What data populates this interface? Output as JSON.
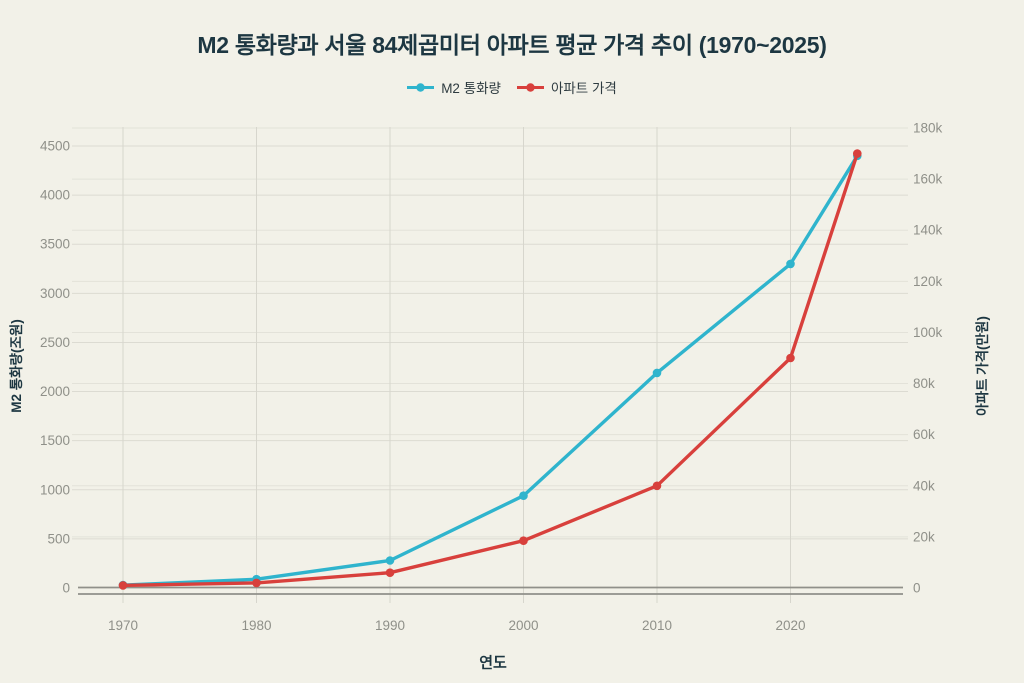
{
  "page": {
    "background": "#f2f1e8"
  },
  "title": "M2 통화량과 서울 84제곱미터 아파트 평균 가격 추이 (1970~2025)",
  "legend": {
    "items": [
      {
        "id": "m2",
        "label": "M2 통화량",
        "color": "#2fb4cd"
      },
      {
        "id": "apt",
        "label": "아파트 가격",
        "color": "#d8403c"
      }
    ]
  },
  "colors": {
    "background": "#f2f1e8",
    "title_text": "#1d3742",
    "tick_text": "#8f9089",
    "grid_light": "#e3e2d9",
    "grid": "#dcdbd2",
    "grid_vertical": "#d7d6cd",
    "axis_line": "#90908a",
    "m2_series": "#2fb4cd",
    "apt_series": "#d8403c"
  },
  "chart_data": {
    "type": "line",
    "title": "M2 통화량과 서울 84제곱미터 아파트 평균 가격 추이 (1970~2025)",
    "xlabel": "연도",
    "y_left_label": "M2 통화량(조원)",
    "y_right_label": "아파트 가격(만원)",
    "x": [
      1970,
      1980,
      1990,
      2000,
      2010,
      2020,
      2025
    ],
    "x_tick_labels": [
      "1970",
      "1980",
      "1990",
      "2000",
      "2010",
      "2020"
    ],
    "x_ticks": [
      1970,
      1980,
      1990,
      2000,
      2010,
      2020
    ],
    "y_left_ticks": [
      0,
      500,
      1000,
      1500,
      2000,
      2500,
      3000,
      3500,
      4000,
      4500
    ],
    "y_left_tick_labels": [
      "0",
      "500",
      "1000",
      "1500",
      "2000",
      "2500",
      "3000",
      "3500",
      "4000",
      "4500"
    ],
    "y_left_range": [
      0,
      4700
    ],
    "y_right_ticks": [
      0,
      20000,
      40000,
      60000,
      80000,
      100000,
      120000,
      140000,
      160000,
      180000
    ],
    "y_right_tick_labels": [
      "0",
      "20k",
      "40k",
      "60k",
      "80k",
      "100k",
      "120k",
      "140k",
      "160k",
      "180k"
    ],
    "y_right_range": [
      0,
      188000
    ],
    "grid": true,
    "legend_position": "top",
    "series": [
      {
        "id": "m2",
        "name": "M2 통화량",
        "axis": "left",
        "color": "#2fb4cd",
        "values": [
          30,
          90,
          280,
          940,
          2190,
          3300,
          4400
        ]
      },
      {
        "id": "apt",
        "name": "아파트 가격",
        "axis": "right",
        "color": "#d8403c",
        "values": [
          1000,
          2000,
          6000,
          18500,
          40000,
          90000,
          170000
        ]
      }
    ]
  }
}
